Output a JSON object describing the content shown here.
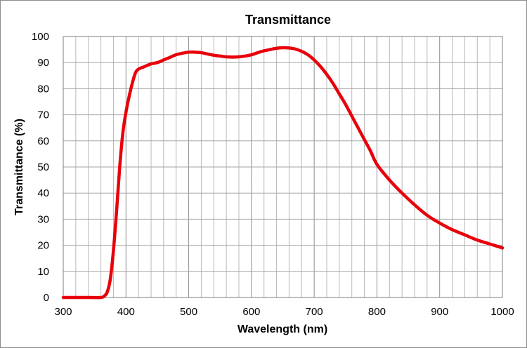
{
  "chart_data": {
    "type": "line",
    "title": "Transmittance",
    "xlabel": "Wavelength (nm)",
    "ylabel": "Transmittance (%)",
    "xlim": [
      300,
      1000
    ],
    "ylim": [
      0,
      100
    ],
    "x_ticks": [
      "300",
      "400",
      "500",
      "600",
      "700",
      "800",
      "900",
      "1000"
    ],
    "y_ticks": [
      "0",
      "10",
      "20",
      "30",
      "40",
      "50",
      "60",
      "70",
      "80",
      "90",
      "100"
    ],
    "x_minor_step": 20,
    "y_minor_step": 10,
    "grid": true,
    "legend": "none",
    "series": [
      {
        "color": "#e8000b",
        "x": [
          300,
          340,
          360,
          365,
          370,
          375,
          380,
          385,
          390,
          395,
          400,
          405,
          410,
          415,
          420,
          430,
          440,
          450,
          460,
          470,
          480,
          490,
          500,
          510,
          520,
          530,
          540,
          550,
          560,
          570,
          580,
          590,
          600,
          610,
          620,
          630,
          640,
          650,
          660,
          670,
          680,
          690,
          700,
          710,
          720,
          730,
          740,
          750,
          760,
          770,
          780,
          790,
          800,
          820,
          840,
          860,
          880,
          900,
          920,
          940,
          960,
          980,
          1000
        ],
        "y": [
          0,
          0,
          0,
          0.5,
          2,
          7,
          18,
          33,
          50,
          63,
          71,
          77,
          82,
          86,
          87.5,
          88.5,
          89.5,
          90,
          91,
          92,
          93,
          93.6,
          94,
          94,
          93.8,
          93.3,
          92.8,
          92.5,
          92.2,
          92.1,
          92.2,
          92.5,
          93,
          93.8,
          94.5,
          95,
          95.5,
          95.7,
          95.6,
          95.2,
          94.3,
          93,
          91,
          88.5,
          85.5,
          82,
          78,
          74,
          69.5,
          65,
          60.5,
          56,
          51,
          45,
          40,
          35.5,
          31.5,
          28.5,
          26,
          24,
          22,
          20.5,
          19
        ]
      }
    ]
  }
}
